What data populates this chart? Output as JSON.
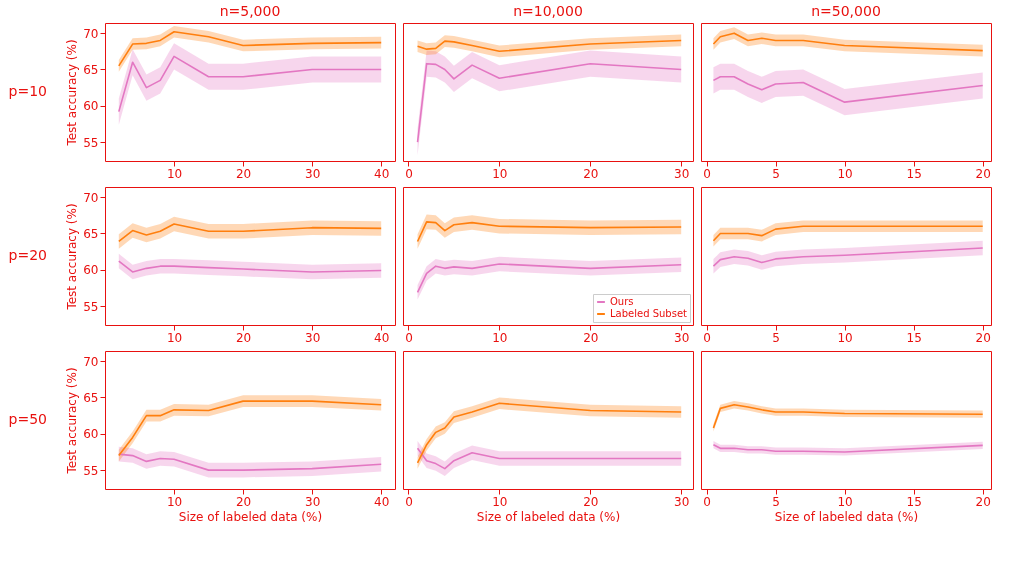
{
  "chart_data": [
    {
      "type": "line",
      "title": "n=5,000",
      "ylabel": "Test accuracy (%)",
      "annotations": [
        "p=10"
      ],
      "x": [
        2,
        4,
        6,
        8,
        10,
        15,
        20,
        30,
        40
      ],
      "xlim": [
        0,
        42
      ],
      "xticks": [
        10,
        20,
        30,
        40
      ],
      "ylim": [
        52.4,
        71.4
      ],
      "yticks": [
        55,
        60,
        65,
        70
      ],
      "grid": false,
      "series": [
        {
          "color": "#e377c2",
          "values": [
            59.2,
            66,
            62.5,
            63.5,
            66.8,
            64,
            64,
            65,
            65
          ],
          "lower": [
            57.4,
            64.2,
            60.7,
            61.7,
            65,
            62.2,
            62.2,
            63.2,
            63.2
          ],
          "upper": [
            61,
            67.8,
            64.3,
            65.3,
            68.6,
            65.8,
            65.8,
            66.8,
            66.8
          ]
        },
        {
          "color": "#ff7f0e",
          "values": [
            65.5,
            68.5,
            68.6,
            69,
            70.2,
            69.5,
            68.3,
            68.6,
            68.7
          ],
          "lower": [
            64.7,
            67.7,
            67.8,
            68.2,
            69.4,
            68.7,
            67.5,
            67.8,
            67.9
          ],
          "upper": [
            66.3,
            69.3,
            69.4,
            69.8,
            71,
            70.3,
            69.1,
            69.4,
            69.5
          ]
        }
      ]
    },
    {
      "type": "line",
      "title": "n=10,000",
      "x": [
        1,
        2,
        3,
        4,
        5,
        7,
        10,
        20,
        30
      ],
      "xlim": [
        -0.6,
        31.3
      ],
      "xticks": [
        0,
        10,
        20,
        30
      ],
      "ylim": [
        52.4,
        71.4
      ],
      "tick_labels": "x",
      "grid": false,
      "series": [
        {
          "color": "#e377c2",
          "values": [
            55,
            65.8,
            65.7,
            65,
            63.7,
            65.6,
            63.8,
            65.8,
            65
          ],
          "lower": [
            53.2,
            64,
            63.9,
            63.2,
            61.9,
            63.8,
            62,
            64,
            63.2
          ],
          "upper": [
            56.8,
            67.6,
            67.5,
            66.8,
            65.5,
            67.4,
            65.6,
            67.6,
            66.8
          ]
        },
        {
          "color": "#ff7f0e",
          "values": [
            68.2,
            67.8,
            67.9,
            68.9,
            68.8,
            68.3,
            67.5,
            68.5,
            69
          ],
          "lower": [
            67.4,
            67,
            67.1,
            68.1,
            68,
            67.5,
            66.7,
            67.7,
            68.2
          ],
          "upper": [
            69,
            68.6,
            68.7,
            69.7,
            69.6,
            69.1,
            68.3,
            69.3,
            69.8
          ]
        }
      ]
    },
    {
      "type": "line",
      "title": "n=50,000",
      "x": [
        0.5,
        1,
        2,
        3,
        4,
        5,
        7,
        10,
        20
      ],
      "xlim": [
        -0.4,
        20.6
      ],
      "xticks": [
        0,
        5,
        10,
        15,
        20
      ],
      "ylim": [
        52.4,
        71.4
      ],
      "tick_labels": "x",
      "grid": false,
      "series": [
        {
          "color": "#e377c2",
          "values": [
            63.5,
            64,
            64,
            63,
            62.2,
            63,
            63.2,
            60.5,
            62.8
          ],
          "lower": [
            61.7,
            62.2,
            62.2,
            61.2,
            60.4,
            61.2,
            61.4,
            58.7,
            61
          ],
          "upper": [
            65.3,
            65.8,
            65.8,
            64.8,
            64,
            64.8,
            65,
            62.3,
            64.6
          ]
        },
        {
          "color": "#ff7f0e",
          "values": [
            68.5,
            69.5,
            70,
            69,
            69.3,
            69,
            69,
            68.3,
            67.6
          ],
          "lower": [
            67.7,
            68.7,
            69.2,
            68.2,
            68.5,
            68.2,
            68.2,
            67.5,
            66.8
          ],
          "upper": [
            69.3,
            70.3,
            70.8,
            69.8,
            70.1,
            69.8,
            69.8,
            69.1,
            68.4
          ]
        }
      ]
    },
    {
      "type": "line",
      "ylabel": "Test accuracy (%)",
      "annotations": [
        "p=20"
      ],
      "x": [
        2,
        4,
        6,
        8,
        10,
        15,
        20,
        30,
        40
      ],
      "xlim": [
        0,
        42
      ],
      "xticks": [
        10,
        20,
        30,
        40
      ],
      "ylim": [
        52.4,
        71.4
      ],
      "yticks": [
        55,
        60,
        65,
        70
      ],
      "grid": false,
      "series": [
        {
          "color": "#e377c2",
          "values": [
            61.2,
            59.7,
            60.2,
            60.5,
            60.5,
            60.3,
            60.1,
            59.7,
            59.9
          ],
          "lower": [
            60.2,
            58.7,
            59.2,
            59.5,
            59.5,
            59.3,
            59.1,
            58.7,
            58.9
          ],
          "upper": [
            62.2,
            60.7,
            61.2,
            61.5,
            61.5,
            61.3,
            61.1,
            60.7,
            60.9
          ]
        },
        {
          "color": "#ff7f0e",
          "values": [
            63.9,
            65.4,
            64.8,
            65.3,
            66.3,
            65.3,
            65.3,
            65.8,
            65.7
          ],
          "lower": [
            62.9,
            64.4,
            63.8,
            64.3,
            65.3,
            64.3,
            64.3,
            64.8,
            64.7
          ],
          "upper": [
            64.9,
            66.4,
            65.8,
            66.3,
            67.3,
            66.3,
            66.3,
            66.8,
            66.7
          ]
        }
      ]
    },
    {
      "type": "line",
      "x": [
        1,
        2,
        3,
        4,
        5,
        7,
        10,
        20,
        30
      ],
      "xlim": [
        -0.6,
        31.3
      ],
      "xticks": [
        0,
        10,
        20,
        30
      ],
      "ylim": [
        52.4,
        71.4
      ],
      "tick_labels": "x",
      "grid": false,
      "legend": "bottom right",
      "series": [
        {
          "name": "Ours",
          "color": "#e377c2",
          "values": [
            56.9,
            59.5,
            60.5,
            60.2,
            60.4,
            60.2,
            60.8,
            60.2,
            60.7
          ],
          "lower": [
            55.9,
            58.5,
            59.5,
            59.2,
            59.4,
            59.2,
            59.8,
            59.2,
            59.7
          ],
          "upper": [
            57.9,
            60.5,
            61.5,
            61.2,
            61.4,
            61.2,
            61.8,
            61.2,
            61.7
          ]
        },
        {
          "name": "Labeled Subset",
          "color": "#ff7f0e",
          "values": [
            63.9,
            66.6,
            66.5,
            65.4,
            66.2,
            66.5,
            66,
            65.8,
            65.9
          ],
          "lower": [
            62.9,
            65.6,
            65.5,
            64.4,
            65.2,
            65.5,
            65,
            64.8,
            64.9
          ],
          "upper": [
            64.9,
            67.6,
            67.5,
            66.4,
            67.2,
            67.5,
            67,
            66.8,
            66.9
          ]
        }
      ]
    },
    {
      "type": "line",
      "x": [
        0.5,
        1,
        2,
        3,
        4,
        5,
        7,
        10,
        20
      ],
      "xlim": [
        -0.4,
        20.6
      ],
      "xticks": [
        0,
        5,
        10,
        15,
        20
      ],
      "ylim": [
        52.4,
        71.4
      ],
      "tick_labels": "x",
      "grid": false,
      "series": [
        {
          "color": "#e377c2",
          "values": [
            60.5,
            61.4,
            61.8,
            61.6,
            61,
            61.5,
            61.8,
            62,
            63
          ],
          "lower": [
            59.5,
            60.4,
            60.8,
            60.6,
            60,
            60.5,
            60.8,
            61,
            62
          ],
          "upper": [
            61.5,
            62.4,
            62.8,
            62.6,
            62,
            62.5,
            62.8,
            63,
            64
          ]
        },
        {
          "color": "#ff7f0e",
          "values": [
            64,
            65,
            65,
            65,
            64.7,
            65.6,
            66,
            66,
            66
          ],
          "lower": [
            63.2,
            64.2,
            64.2,
            64.2,
            63.9,
            64.8,
            65.2,
            65.2,
            65.2
          ],
          "upper": [
            64.8,
            65.8,
            65.8,
            65.8,
            65.5,
            66.4,
            66.8,
            66.8,
            66.8
          ]
        }
      ]
    },
    {
      "type": "line",
      "xlabel": "Size of labeled data (%)",
      "ylabel": "Test accuracy (%)",
      "annotations": [
        "p=50"
      ],
      "x": [
        2,
        4,
        6,
        8,
        10,
        15,
        20,
        30,
        40
      ],
      "xlim": [
        0,
        42
      ],
      "xticks": [
        10,
        20,
        30,
        40
      ],
      "ylim": [
        52.4,
        71.4
      ],
      "yticks": [
        55,
        60,
        65,
        70
      ],
      "grid": false,
      "series": [
        {
          "color": "#e377c2",
          "values": [
            57.2,
            57,
            56.2,
            56.6,
            56.5,
            55,
            55,
            55.2,
            55.8
          ],
          "lower": [
            56.2,
            56,
            55.2,
            55.6,
            55.5,
            54,
            54,
            54.2,
            54.8
          ],
          "upper": [
            58.2,
            58,
            57.2,
            57.6,
            57.5,
            56,
            56,
            56.2,
            56.8
          ]
        },
        {
          "color": "#ff7f0e",
          "values": [
            57,
            59.5,
            62.5,
            62.5,
            63.3,
            63.2,
            64.5,
            64.5,
            64
          ],
          "lower": [
            56.2,
            58.7,
            61.7,
            61.7,
            62.5,
            62.4,
            63.7,
            63.7,
            63.2
          ],
          "upper": [
            57.8,
            60.3,
            63.3,
            63.3,
            64.1,
            64,
            65.3,
            65.3,
            64.8
          ]
        }
      ]
    },
    {
      "type": "line",
      "xlabel": "Size of labeled data (%)",
      "x": [
        1,
        2,
        3,
        4,
        5,
        7,
        10,
        20,
        30
      ],
      "xlim": [
        -0.6,
        31.3
      ],
      "xticks": [
        0,
        10,
        20,
        30
      ],
      "ylim": [
        52.4,
        71.4
      ],
      "tick_labels": "x",
      "grid": false,
      "series": [
        {
          "color": "#e377c2",
          "values": [
            58,
            56.3,
            55.9,
            55.2,
            56.3,
            57.4,
            56.6,
            56.6,
            56.6
          ],
          "lower": [
            57,
            55.3,
            54.9,
            54.2,
            55.3,
            56.4,
            55.6,
            55.6,
            55.6
          ],
          "upper": [
            59,
            57.3,
            56.9,
            56.2,
            57.3,
            58.4,
            57.6,
            57.6,
            57.6
          ]
        },
        {
          "color": "#ff7f0e",
          "values": [
            56,
            58.5,
            60.2,
            60.8,
            62.3,
            63,
            64.2,
            63.2,
            63
          ],
          "lower": [
            55.2,
            57.7,
            59.4,
            60,
            61.5,
            62.2,
            63.4,
            62.4,
            62.2
          ],
          "upper": [
            56.8,
            59.3,
            61,
            61.6,
            63.1,
            63.8,
            65,
            64,
            63.8
          ]
        }
      ]
    },
    {
      "type": "line",
      "xlabel": "Size of labeled data (%)",
      "x": [
        0.5,
        1,
        2,
        3,
        4,
        5,
        7,
        10,
        20
      ],
      "xlim": [
        -0.4,
        20.6
      ],
      "xticks": [
        0,
        5,
        10,
        15,
        20
      ],
      "ylim": [
        52.4,
        71.4
      ],
      "tick_labels": "x",
      "grid": false,
      "series": [
        {
          "color": "#e377c2",
          "values": [
            58.5,
            58,
            58,
            57.8,
            57.8,
            57.6,
            57.6,
            57.5,
            58.4
          ],
          "lower": [
            58,
            57.5,
            57.5,
            57.3,
            57.3,
            57.1,
            57.1,
            57,
            57.9
          ],
          "upper": [
            59,
            58.5,
            58.5,
            58.3,
            58.3,
            58.1,
            58.1,
            58,
            58.9
          ]
        },
        {
          "color": "#ff7f0e",
          "values": [
            60.8,
            63.5,
            64,
            63.7,
            63.3,
            63,
            63,
            62.8,
            62.7
          ],
          "lower": [
            60.3,
            63,
            63.5,
            63.2,
            62.8,
            62.5,
            62.5,
            62.3,
            62.2
          ],
          "upper": [
            61.3,
            64,
            64.5,
            64.2,
            63.8,
            63.5,
            63.5,
            63.3,
            63.2
          ]
        }
      ]
    }
  ]
}
